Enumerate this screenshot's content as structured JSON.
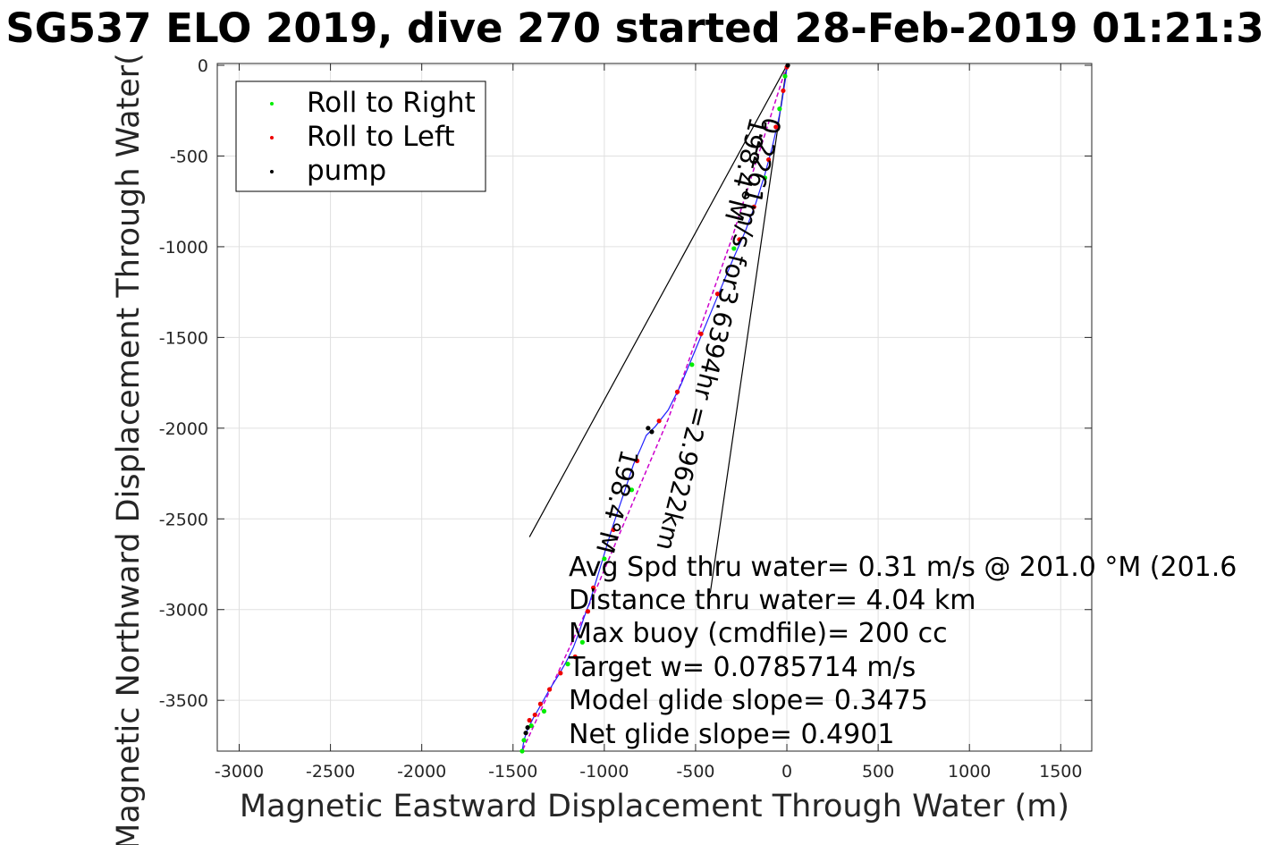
{
  "chart_data": {
    "type": "line",
    "title": "SG537 ELO 2019, dive 270 started 28-Feb-2019 01:21:3",
    "xlabel": "Magnetic Eastward Displacement Through Water (m)",
    "ylabel": "Magnetic Northward Displacement Through Water(",
    "xlim": [
      -3120,
      1670
    ],
    "ylim": [
      -3780,
      10
    ],
    "xticks": [
      -3000,
      -2500,
      -2000,
      -1500,
      -1000,
      -500,
      0,
      500,
      1000,
      1500
    ],
    "yticks": [
      0,
      -500,
      -1000,
      -1500,
      -2000,
      -2500,
      -3000,
      -3500
    ],
    "grid": true,
    "legend": {
      "position": "top-left",
      "entries": [
        {
          "label": "Roll to Right",
          "color": "#00ee00"
        },
        {
          "label": "Roll to Left",
          "color": "#ee0000"
        },
        {
          "label": "pump",
          "color": "#000000"
        }
      ]
    },
    "track": {
      "color": "#2020ff",
      "points": [
        [
          0,
          0
        ],
        [
          -5,
          -60
        ],
        [
          -15,
          -120
        ],
        [
          -30,
          -220
        ],
        [
          -50,
          -320
        ],
        [
          -80,
          -450
        ],
        [
          -120,
          -600
        ],
        [
          -170,
          -760
        ],
        [
          -230,
          -920
        ],
        [
          -300,
          -1080
        ],
        [
          -370,
          -1250
        ],
        [
          -440,
          -1420
        ],
        [
          -510,
          -1590
        ],
        [
          -580,
          -1760
        ],
        [
          -650,
          -1900
        ],
        [
          -720,
          -1990
        ],
        [
          -770,
          -2040
        ],
        [
          -800,
          -2110
        ],
        [
          -840,
          -2200
        ],
        [
          -870,
          -2290
        ],
        [
          -900,
          -2380
        ],
        [
          -930,
          -2470
        ],
        [
          -960,
          -2560
        ],
        [
          -990,
          -2660
        ],
        [
          -1020,
          -2760
        ],
        [
          -1050,
          -2860
        ],
        [
          -1080,
          -2960
        ],
        [
          -1110,
          -3040
        ],
        [
          -1140,
          -3130
        ],
        [
          -1170,
          -3210
        ],
        [
          -1210,
          -3290
        ],
        [
          -1250,
          -3360
        ],
        [
          -1300,
          -3440
        ],
        [
          -1350,
          -3530
        ],
        [
          -1390,
          -3600
        ],
        [
          -1420,
          -3660
        ],
        [
          -1440,
          -3720
        ],
        [
          -1450,
          -3780
        ]
      ]
    },
    "model_line": {
      "color": "#cc00cc",
      "points": [
        [
          0,
          0
        ],
        [
          -300,
          -950
        ],
        [
          -650,
          -1950
        ],
        [
          -1050,
          -2900
        ],
        [
          -1450,
          -3780
        ]
      ]
    },
    "heading_lines": {
      "color": "#000000",
      "segments": [
        [
          [
            0,
            0
          ],
          [
            -1410,
            -2600
          ]
        ],
        [
          [
            0,
            0
          ],
          [
            -420,
            -2910
          ]
        ]
      ]
    },
    "roll_right_points": [
      [
        -10,
        -60
      ],
      [
        -40,
        -240
      ],
      [
        -120,
        -620
      ],
      [
        -290,
        -1010
      ],
      [
        -520,
        -1650
      ],
      [
        -850,
        -2340
      ],
      [
        -1000,
        -2720
      ],
      [
        -1120,
        -3180
      ],
      [
        -1200,
        -3300
      ],
      [
        -1330,
        -3560
      ],
      [
        -1400,
        -3640
      ],
      [
        -1440,
        -3720
      ],
      [
        -1450,
        -3780
      ]
    ],
    "roll_left_points": [
      [
        0,
        -10
      ],
      [
        -20,
        -140
      ],
      [
        -60,
        -340
      ],
      [
        -100,
        -520
      ],
      [
        -180,
        -780
      ],
      [
        -260,
        -960
      ],
      [
        -380,
        -1260
      ],
      [
        -470,
        -1480
      ],
      [
        -600,
        -1800
      ],
      [
        -700,
        -1960
      ],
      [
        -820,
        -2180
      ],
      [
        -950,
        -2560
      ],
      [
        -1060,
        -2880
      ],
      [
        -1090,
        -3010
      ],
      [
        -1160,
        -3260
      ],
      [
        -1240,
        -3350
      ],
      [
        -1300,
        -3440
      ],
      [
        -1350,
        -3520
      ],
      [
        -1380,
        -3580
      ],
      [
        -1410,
        -3610
      ]
    ],
    "pump_points": [
      [
        5,
        0
      ],
      [
        -740,
        -2020
      ],
      [
        -760,
        -2000
      ],
      [
        -1420,
        -3650
      ],
      [
        -1430,
        -3680
      ]
    ],
    "annotations": {
      "rotated": [
        {
          "text": "198.4°M",
          "x": -200,
          "y": -280,
          "angle": 104
        },
        {
          "text": "0.2261m/s for3.6394hr =2.9622km",
          "x": -125,
          "y": -280,
          "angle": 104
        },
        {
          "text": "198.4°M",
          "x": -905,
          "y": -2110,
          "angle": 104
        }
      ],
      "stats": [
        "Avg Spd thru water=  0.31 m/s @ 201.0 °M (201.6",
        "Distance thru water=  4.04 km",
        "Max buoy (cmdfile)= 200 cc",
        "Target w= 0.0785714 m/s",
        "Model glide slope= 0.3475",
        "Net glide slope= 0.4901"
      ]
    }
  }
}
